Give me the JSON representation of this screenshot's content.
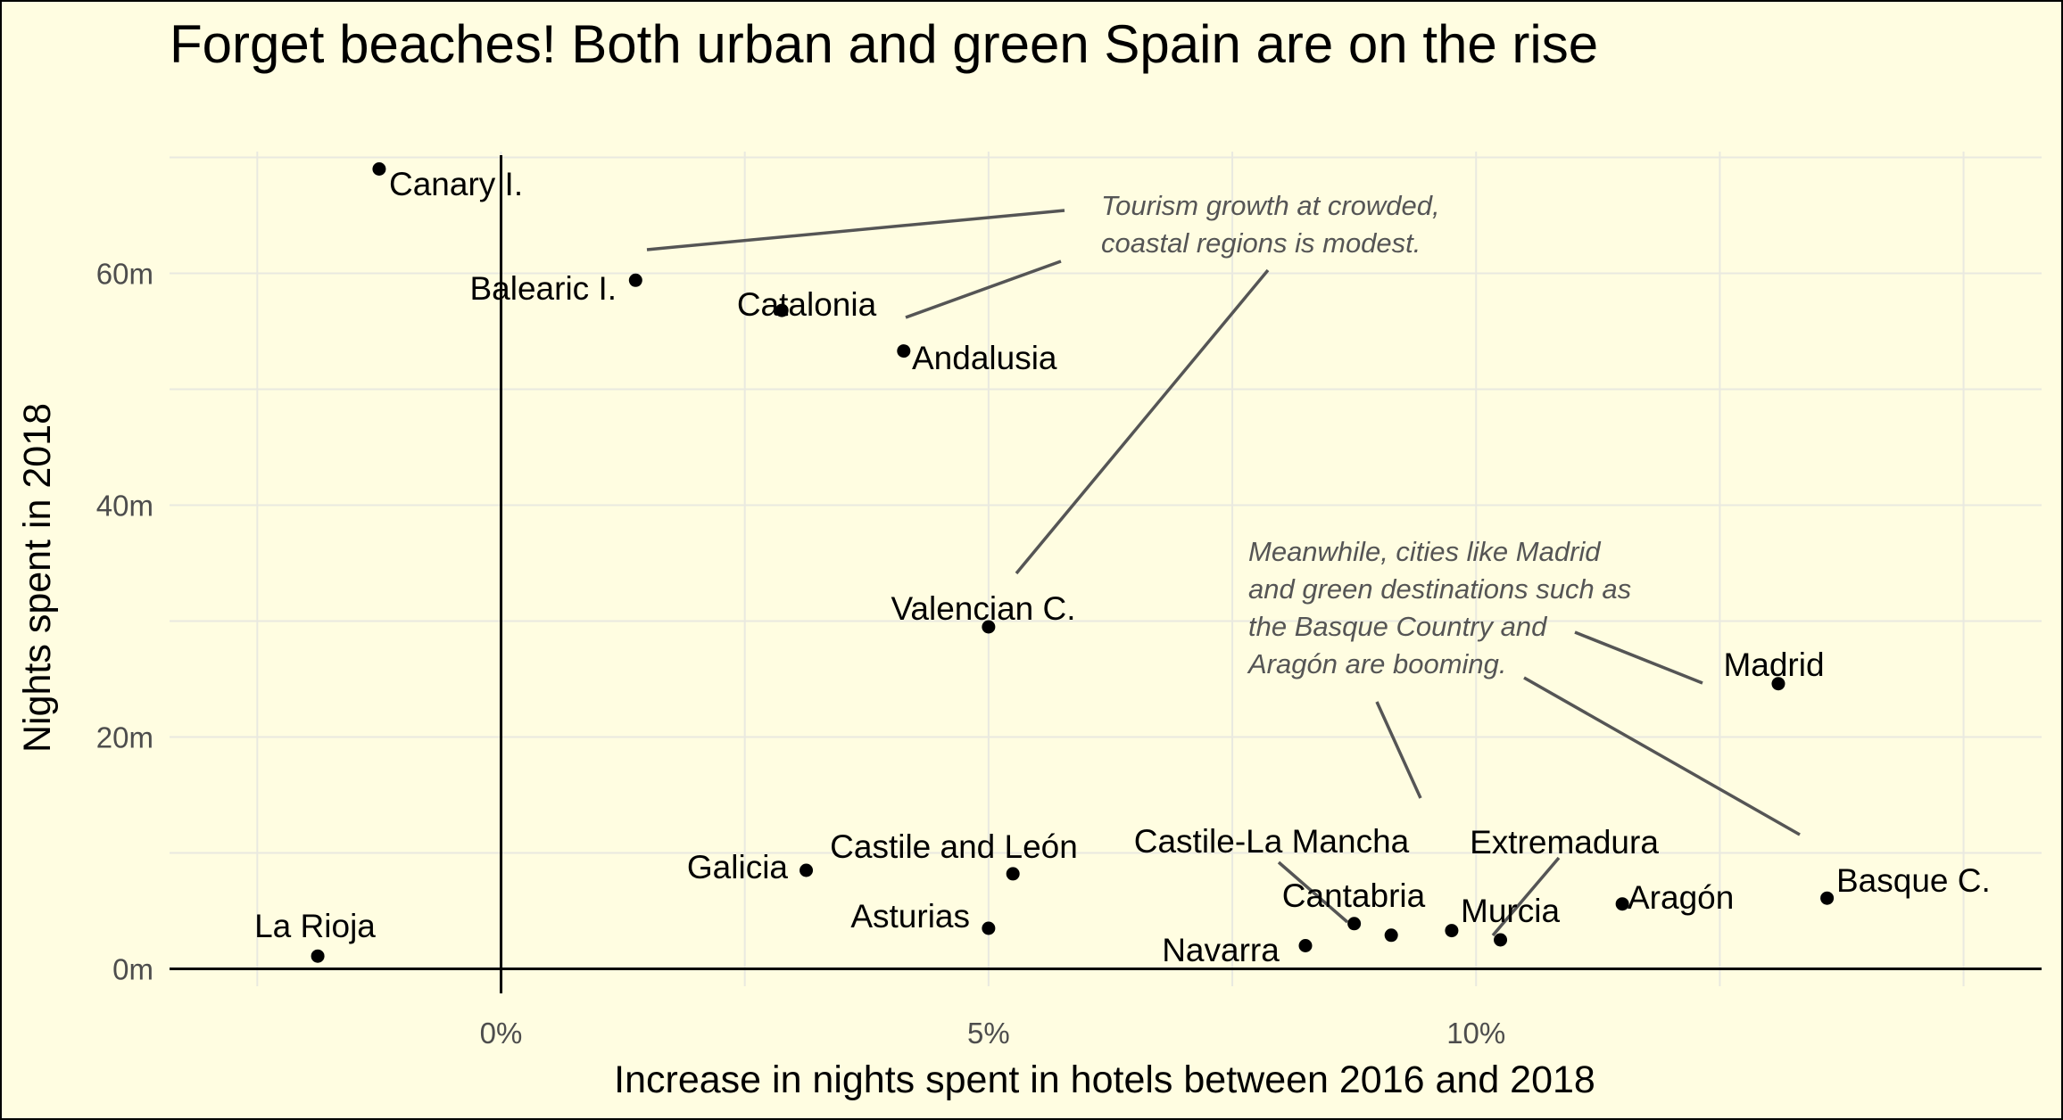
{
  "chart_data": {
    "type": "scatter",
    "title": "Forget beaches! Both urban and green Spain are on the rise",
    "xlabel": "Increase in nights spent in hotels between 2016 and 2018",
    "ylabel": "Nights spent in 2018",
    "xlim": [
      -3.4,
      15.8
    ],
    "ylim": [
      -1.5,
      70.5
    ],
    "x_ticks": [
      0,
      5,
      10
    ],
    "x_tick_labels": [
      "0%",
      "5%",
      "10%"
    ],
    "y_ticks": [
      0,
      20,
      40,
      60
    ],
    "y_tick_labels": [
      "0m",
      "20m",
      "40m",
      "60m"
    ],
    "grid": true,
    "points": [
      {
        "label": "Canary I.",
        "x": -1.25,
        "y": 69.0
      },
      {
        "label": "Balearic I.",
        "x": 1.38,
        "y": 59.4
      },
      {
        "label": "Catalonia",
        "x": 2.88,
        "y": 56.8
      },
      {
        "label": "Andalusia",
        "x": 4.13,
        "y": 53.3
      },
      {
        "label": "Valencian C.",
        "x": 5.0,
        "y": 29.5
      },
      {
        "label": "Madrid",
        "x": 13.1,
        "y": 24.6
      },
      {
        "label": "Galicia",
        "x": 3.13,
        "y": 8.5
      },
      {
        "label": "Castile and León",
        "x": 5.25,
        "y": 8.2
      },
      {
        "label": "Asturias",
        "x": 5.0,
        "y": 3.5
      },
      {
        "label": "La Rioja",
        "x": -1.88,
        "y": 1.1
      },
      {
        "label": "Castile-La Mancha",
        "x": 8.75,
        "y": 3.9
      },
      {
        "label": "Cantabria",
        "x": 9.13,
        "y": 2.9
      },
      {
        "label": "Murcia",
        "x": 9.75,
        "y": 3.3
      },
      {
        "label": "Navarra",
        "x": 8.25,
        "y": 2.0
      },
      {
        "label": "Extremadura",
        "x": 10.25,
        "y": 2.5
      },
      {
        "label": "Aragón",
        "x": 11.5,
        "y": 5.6
      },
      {
        "label": "Basque C.",
        "x": 13.6,
        "y": 6.1
      }
    ],
    "annotations": [
      {
        "lines": [
          "Tourism growth at crowded,",
          "coastal regions is modest."
        ]
      },
      {
        "lines": [
          "Meanwhile, cities like Madrid",
          "and green destinations such as",
          "the Basque Country and",
          "Aragón are booming."
        ]
      }
    ]
  }
}
